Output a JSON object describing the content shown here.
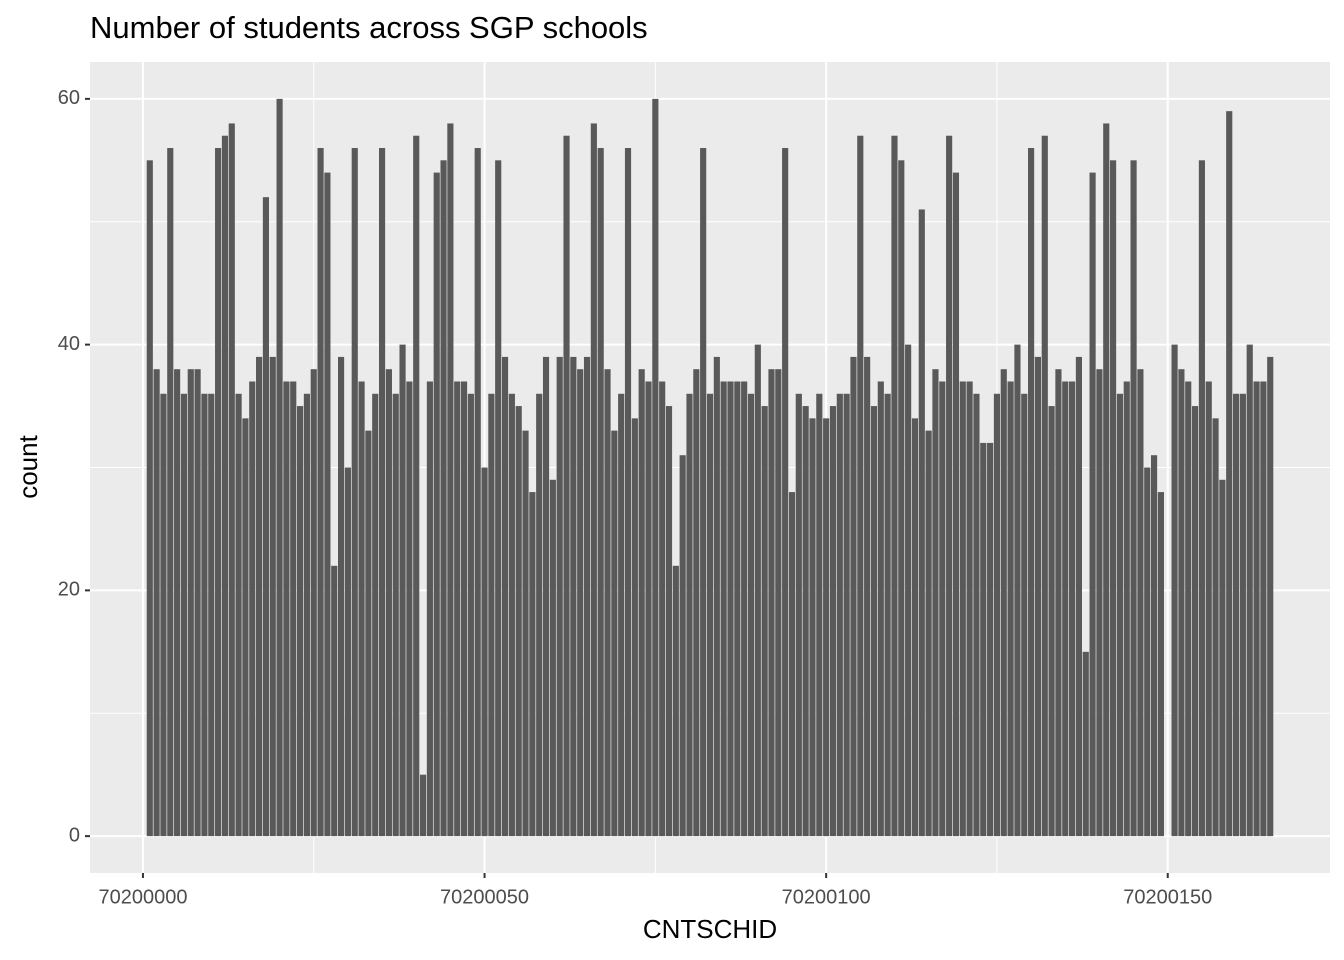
{
  "chart_data": {
    "type": "bar",
    "title": "Number of students across SGP schools",
    "x_label": "CNTSCHID",
    "y_label": "count",
    "color": "#595959",
    "grid": true,
    "x": [
      70200001,
      70200002,
      70200003,
      70200004,
      70200005,
      70200006,
      70200007,
      70200008,
      70200009,
      70200010,
      70200011,
      70200012,
      70200013,
      70200014,
      70200015,
      70200016,
      70200017,
      70200018,
      70200019,
      70200020,
      70200021,
      70200022,
      70200023,
      70200024,
      70200025,
      70200026,
      70200027,
      70200028,
      70200029,
      70200030,
      70200031,
      70200032,
      70200033,
      70200034,
      70200035,
      70200036,
      70200037,
      70200038,
      70200039,
      70200040,
      70200041,
      70200042,
      70200043,
      70200044,
      70200045,
      70200046,
      70200047,
      70200048,
      70200049,
      70200050,
      70200051,
      70200052,
      70200053,
      70200054,
      70200055,
      70200056,
      70200057,
      70200058,
      70200059,
      70200060,
      70200061,
      70200062,
      70200063,
      70200064,
      70200065,
      70200066,
      70200067,
      70200068,
      70200069,
      70200070,
      70200071,
      70200072,
      70200073,
      70200074,
      70200075,
      70200076,
      70200077,
      70200078,
      70200079,
      70200080,
      70200081,
      70200082,
      70200083,
      70200084,
      70200085,
      70200086,
      70200087,
      70200088,
      70200089,
      70200090,
      70200091,
      70200092,
      70200093,
      70200094,
      70200095,
      70200096,
      70200097,
      70200098,
      70200099,
      70200100,
      70200101,
      70200102,
      70200103,
      70200104,
      70200105,
      70200106,
      70200107,
      70200108,
      70200109,
      70200110,
      70200111,
      70200112,
      70200113,
      70200114,
      70200115,
      70200116,
      70200117,
      70200118,
      70200119,
      70200120,
      70200121,
      70200122,
      70200123,
      70200124,
      70200125,
      70200126,
      70200127,
      70200128,
      70200129,
      70200130,
      70200131,
      70200132,
      70200133,
      70200134,
      70200135,
      70200136,
      70200137,
      70200138,
      70200139,
      70200140,
      70200141,
      70200142,
      70200143,
      70200144,
      70200145,
      70200146,
      70200147,
      70200148,
      70200149,
      70200151,
      70200152,
      70200153,
      70200154,
      70200155,
      70200156,
      70200157,
      70200158,
      70200159,
      70200160,
      70200161,
      70200162,
      70200163,
      70200164,
      70200165
    ],
    "values": [
      55,
      38,
      36,
      56,
      38,
      36,
      38,
      38,
      36,
      36,
      56,
      57,
      58,
      36,
      34,
      37,
      39,
      52,
      39,
      60,
      37,
      37,
      35,
      36,
      38,
      56,
      54,
      22,
      39,
      30,
      56,
      37,
      33,
      36,
      56,
      38,
      36,
      40,
      37,
      57,
      5,
      37,
      54,
      55,
      58,
      37,
      37,
      36,
      56,
      30,
      36,
      55,
      39,
      36,
      35,
      33,
      28,
      36,
      39,
      29,
      39,
      57,
      39,
      38,
      39,
      58,
      56,
      38,
      33,
      36,
      56,
      34,
      38,
      37,
      60,
      37,
      35,
      22,
      31,
      36,
      38,
      56,
      36,
      39,
      37,
      37,
      37,
      37,
      36,
      40,
      35,
      38,
      38,
      56,
      28,
      36,
      35,
      34,
      36,
      34,
      35,
      36,
      36,
      39,
      57,
      39,
      35,
      37,
      36,
      57,
      55,
      40,
      34,
      51,
      33,
      38,
      37,
      57,
      54,
      37,
      37,
      36,
      32,
      32,
      36,
      38,
      37,
      40,
      36,
      56,
      39,
      57,
      35,
      38,
      37,
      37,
      39,
      15,
      54,
      38,
      58,
      55,
      36,
      37,
      55,
      38,
      30,
      31,
      28,
      40,
      38,
      37,
      35,
      55,
      37,
      34,
      29,
      59,
      36,
      36,
      40,
      37,
      37,
      39
    ],
    "bar_width": 0.9,
    "xlim": [
      70199992.25,
      70200173.75
    ],
    "xticks": [
      70200000,
      70200050,
      70200100,
      70200150
    ],
    "ylim": [
      -3,
      63
    ],
    "yticks": [
      0,
      20,
      40,
      60
    ]
  }
}
